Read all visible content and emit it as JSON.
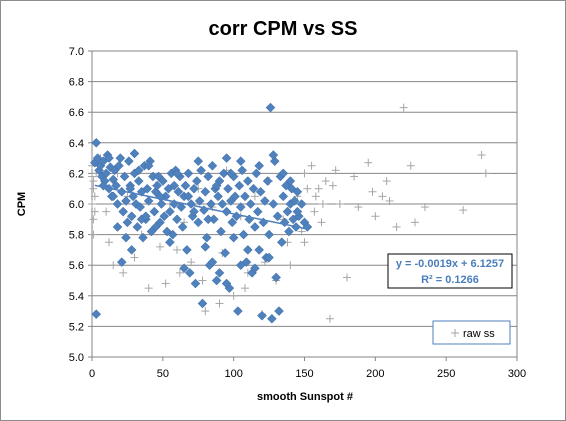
{
  "chart_data": {
    "type": "scatter",
    "title": "corr CPM vs SS",
    "xlabel": "smooth Sunspot #",
    "ylabel": "CPM",
    "xlim": [
      0,
      300
    ],
    "ylim": [
      5.0,
      7.0
    ],
    "x_ticks": [
      "0",
      "50",
      "100",
      "150",
      "200",
      "250",
      "300"
    ],
    "y_ticks": [
      "5.0",
      "5.2",
      "5.4",
      "5.6",
      "5.8",
      "6.0",
      "6.2",
      "6.4",
      "6.6",
      "6.8",
      "7.0"
    ],
    "grid": "horizontal",
    "legend_position": "bottom-right",
    "trendline": {
      "slope": -0.0019,
      "intercept": 6.1257,
      "equation_text": "y = -0.0019x + 6.1257",
      "r2_text": "R² = 0.1266"
    },
    "series": [
      {
        "name": "",
        "marker": "diamond",
        "color": "#4f81bd",
        "points": [
          [
            2,
            6.27
          ],
          [
            3,
            6.4
          ],
          [
            4,
            6.3
          ],
          [
            5,
            6.22
          ],
          [
            6,
            6.25
          ],
          [
            7,
            6.18
          ],
          [
            8,
            6.28
          ],
          [
            9,
            6.15
          ],
          [
            10,
            6.2
          ],
          [
            11,
            6.32
          ],
          [
            12,
            6.1
          ],
          [
            13,
            6.24
          ],
          [
            14,
            6.05
          ],
          [
            15,
            6.16
          ],
          [
            16,
            6.22
          ],
          [
            17,
            6.12
          ],
          [
            18,
            6.0
          ],
          [
            19,
            6.25
          ],
          [
            20,
            6.3
          ],
          [
            21,
            6.08
          ],
          [
            22,
            5.95
          ],
          [
            23,
            6.18
          ],
          [
            24,
            6.02
          ],
          [
            25,
            5.88
          ],
          [
            26,
            6.28
          ],
          [
            27,
            6.12
          ],
          [
            28,
            5.92
          ],
          [
            29,
            6.05
          ],
          [
            30,
            6.2
          ],
          [
            31,
            6.0
          ],
          [
            32,
            5.85
          ],
          [
            33,
            6.15
          ],
          [
            34,
            5.98
          ],
          [
            35,
            6.08
          ],
          [
            36,
            5.78
          ],
          [
            37,
            6.25
          ],
          [
            38,
            5.9
          ],
          [
            39,
            6.1
          ],
          [
            40,
            6.02
          ],
          [
            42,
            5.82
          ],
          [
            43,
            6.18
          ],
          [
            44,
            5.95
          ],
          [
            45,
            6.08
          ],
          [
            46,
            6.12
          ],
          [
            48,
            5.88
          ],
          [
            49,
            6.0
          ],
          [
            50,
            6.15
          ],
          [
            51,
            5.92
          ],
          [
            52,
            6.05
          ],
          [
            54,
            6.1
          ],
          [
            55,
            5.95
          ],
          [
            56,
            6.2
          ],
          [
            57,
            5.8
          ],
          [
            58,
            6.0
          ],
          [
            60,
            5.9
          ],
          [
            61,
            6.08
          ],
          [
            62,
            6.18
          ],
          [
            63,
            5.98
          ],
          [
            64,
            5.85
          ],
          [
            65,
            6.05
          ],
          [
            66,
            6.12
          ],
          [
            67,
            5.7
          ],
          [
            68,
            6.2
          ],
          [
            69,
            5.55
          ],
          [
            70,
            6.0
          ],
          [
            71,
            5.92
          ],
          [
            72,
            6.1
          ],
          [
            73,
            5.48
          ],
          [
            74,
            6.15
          ],
          [
            75,
            5.88
          ],
          [
            76,
            6.02
          ],
          [
            77,
            6.22
          ],
          [
            78,
            5.35
          ],
          [
            79,
            5.96
          ],
          [
            80,
            6.08
          ],
          [
            81,
            5.78
          ],
          [
            82,
            6.18
          ],
          [
            83,
            5.6
          ],
          [
            84,
            6.0
          ],
          [
            85,
            6.25
          ],
          [
            86,
            5.9
          ],
          [
            87,
            6.1
          ],
          [
            88,
            5.5
          ],
          [
            89,
            6.05
          ],
          [
            90,
            6.15
          ],
          [
            91,
            5.82
          ],
          [
            92,
            6.0
          ],
          [
            93,
            6.2
          ],
          [
            94,
            5.68
          ],
          [
            95,
            5.95
          ],
          [
            96,
            6.1
          ],
          [
            97,
            5.45
          ],
          [
            98,
            6.02
          ],
          [
            99,
            5.88
          ],
          [
            100,
            6.18
          ],
          [
            101,
            6.05
          ],
          [
            102,
            5.92
          ],
          [
            103,
            5.3
          ],
          [
            104,
            6.12
          ],
          [
            105,
            5.98
          ],
          [
            106,
            6.22
          ],
          [
            107,
            5.8
          ],
          [
            108,
            6.05
          ],
          [
            109,
            5.62
          ],
          [
            110,
            6.15
          ],
          [
            111,
            5.9
          ],
          [
            112,
            6.0
          ],
          [
            113,
            5.55
          ],
          [
            114,
            6.1
          ],
          [
            115,
            5.85
          ],
          [
            116,
            6.2
          ],
          [
            117,
            5.95
          ],
          [
            118,
            5.7
          ],
          [
            119,
            6.08
          ],
          [
            120,
            5.27
          ],
          [
            121,
            5.88
          ],
          [
            122,
            6.02
          ],
          [
            123,
            5.65
          ],
          [
            124,
            6.15
          ],
          [
            125,
            5.8
          ],
          [
            126,
            6.63
          ],
          [
            127,
            5.25
          ],
          [
            128,
            6.0
          ],
          [
            129,
            6.28
          ],
          [
            130,
            5.52
          ],
          [
            131,
            5.92
          ],
          [
            132,
            5.3
          ],
          [
            133,
            6.18
          ],
          [
            134,
            5.75
          ],
          [
            135,
            6.05
          ],
          [
            136,
            5.88
          ],
          [
            137,
            6.12
          ],
          [
            138,
            5.95
          ],
          [
            139,
            5.82
          ],
          [
            140,
            6.0
          ],
          [
            141,
            6.1
          ],
          [
            142,
            5.9
          ],
          [
            143,
            6.02
          ],
          [
            144,
            5.85
          ],
          [
            145,
            6.08
          ],
          [
            146,
            5.92
          ],
          [
            148,
            6.0
          ],
          [
            150,
            5.88
          ],
          [
            152,
            5.85
          ],
          [
            3,
            5.28
          ],
          [
            18,
            5.85
          ],
          [
            21,
            5.62
          ],
          [
            24,
            5.78
          ],
          [
            28,
            5.7
          ],
          [
            35,
            5.9
          ],
          [
            41,
            6.28
          ],
          [
            47,
            6.18
          ],
          [
            53,
            5.82
          ],
          [
            59,
            6.22
          ],
          [
            85,
            5.62
          ],
          [
            90,
            5.55
          ],
          [
            95,
            5.48
          ],
          [
            100,
            5.78
          ],
          [
            105,
            5.6
          ],
          [
            110,
            5.7
          ],
          [
            115,
            5.58
          ],
          [
            125,
            5.65
          ],
          [
            135,
            6.2
          ],
          [
            140,
            6.15
          ],
          [
            145,
            5.95
          ],
          [
            30,
            6.33
          ],
          [
            40,
            6.25
          ],
          [
            60,
            6.2
          ],
          [
            75,
            6.28
          ],
          [
            95,
            6.3
          ],
          [
            105,
            6.28
          ],
          [
            118,
            6.25
          ],
          [
            128,
            6.32
          ],
          [
            80,
            5.72
          ],
          [
            65,
            5.58
          ],
          [
            55,
            5.75
          ],
          [
            45,
            5.85
          ],
          [
            38,
            5.92
          ],
          [
            27,
            6.1
          ],
          [
            15,
            6.05
          ],
          [
            8,
            6.12
          ],
          [
            12,
            6.3
          ],
          [
            33,
            6.22
          ],
          [
            48,
            6.05
          ],
          [
            58,
            6.12
          ],
          [
            68,
            6.05
          ],
          [
            72,
            5.95
          ],
          [
            82,
            5.9
          ],
          [
            88,
            6.12
          ],
          [
            98,
            6.2
          ]
        ]
      },
      {
        "name": "raw ss",
        "marker": "plus",
        "color": "#a6a6a6",
        "points": [
          [
            0,
            6.25
          ],
          [
            0,
            6.18
          ],
          [
            1,
            6.1
          ],
          [
            1,
            5.9
          ],
          [
            1,
            5.8
          ],
          [
            2,
            6.05
          ],
          [
            2,
            5.95
          ],
          [
            3,
            6.2
          ],
          [
            0,
            6.0
          ],
          [
            1,
            6.15
          ],
          [
            15,
            5.6
          ],
          [
            22,
            5.55
          ],
          [
            40,
            5.45
          ],
          [
            52,
            5.48
          ],
          [
            60,
            5.7
          ],
          [
            70,
            5.62
          ],
          [
            80,
            5.3
          ],
          [
            90,
            5.35
          ],
          [
            100,
            5.4
          ],
          [
            110,
            5.55
          ],
          [
            120,
            5.28
          ],
          [
            130,
            5.5
          ],
          [
            140,
            5.6
          ],
          [
            150,
            5.75
          ],
          [
            155,
            6.25
          ],
          [
            160,
            6.1
          ],
          [
            165,
            6.15
          ],
          [
            168,
            5.25
          ],
          [
            175,
            6.0
          ],
          [
            180,
            5.52
          ],
          [
            195,
            6.27
          ],
          [
            200,
            5.92
          ],
          [
            205,
            6.05
          ],
          [
            210,
            6.02
          ],
          [
            215,
            5.85
          ],
          [
            220,
            6.63
          ],
          [
            225,
            6.25
          ],
          [
            235,
            5.98
          ],
          [
            262,
            5.96
          ],
          [
            275,
            6.32
          ],
          [
            278,
            6.2
          ],
          [
            198,
            6.08
          ],
          [
            185,
            6.18
          ],
          [
            170,
            6.12
          ],
          [
            158,
            6.05
          ],
          [
            162,
            5.88
          ],
          [
            150,
            6.2
          ],
          [
            145,
            6.05
          ],
          [
            135,
            5.9
          ],
          [
            125,
            6.15
          ],
          [
            115,
            6.05
          ],
          [
            105,
            5.92
          ],
          [
            95,
            6.22
          ],
          [
            85,
            5.98
          ],
          [
            75,
            6.1
          ],
          [
            65,
            5.88
          ],
          [
            55,
            6.0
          ],
          [
            45,
            6.12
          ],
          [
            35,
            5.8
          ],
          [
            25,
            6.05
          ],
          [
            18,
            6.2
          ],
          [
            10,
            5.95
          ],
          [
            6,
            6.3
          ],
          [
            12,
            5.75
          ],
          [
            30,
            5.65
          ],
          [
            48,
            5.72
          ],
          [
            62,
            5.55
          ],
          [
            78,
            5.5
          ],
          [
            92,
            5.68
          ],
          [
            108,
            5.45
          ],
          [
            122,
            5.62
          ],
          [
            138,
            5.75
          ],
          [
            148,
            5.82
          ],
          [
            152,
            6.1
          ],
          [
            157,
            5.95
          ],
          [
            163,
            6.0
          ],
          [
            172,
            6.22
          ],
          [
            188,
            5.98
          ],
          [
            208,
            6.15
          ],
          [
            228,
            5.88
          ]
        ]
      }
    ]
  }
}
